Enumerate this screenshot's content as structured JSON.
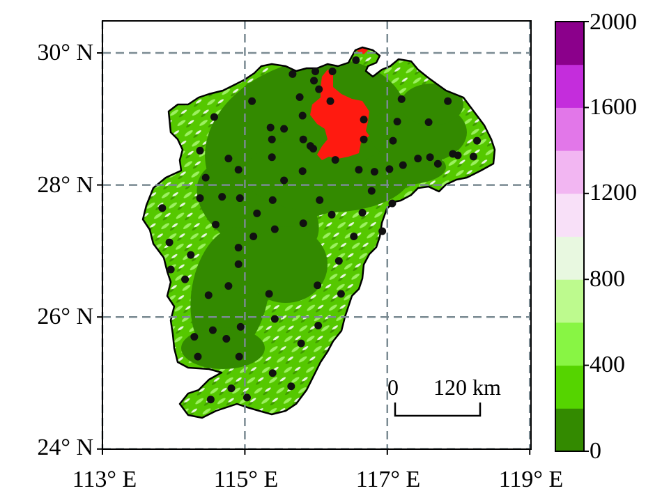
{
  "chart_data": {
    "type": "map",
    "x_ticks": [
      {
        "value": 113,
        "label": "113° E"
      },
      {
        "value": 115,
        "label": "115° E"
      },
      {
        "value": 117,
        "label": "117° E"
      },
      {
        "value": 119,
        "label": "119° E"
      }
    ],
    "y_ticks": [
      {
        "value": 24,
        "label": "24° N"
      },
      {
        "value": 26,
        "label": "26° N"
      },
      {
        "value": 28,
        "label": "28° N"
      },
      {
        "value": 30,
        "label": "30° N"
      }
    ],
    "xlim": [
      113,
      119.05
    ],
    "ylim": [
      24,
      30.48
    ],
    "grid": true,
    "colorbar": {
      "range": [
        0,
        2000
      ],
      "ticks": [
        "0",
        "400",
        "800",
        "1200",
        "1600",
        "2000"
      ],
      "bins": [
        "#338a00",
        "#55d400",
        "#88f544",
        "#bdfa8e",
        "#e8f8e0",
        "#f8e0f8",
        "#f2b6f2",
        "#e277e9",
        "#c42ddc",
        "#8b008b"
      ]
    },
    "scale_bar": {
      "start_label": "0",
      "end_label": "120 km",
      "length_km": 120
    },
    "urban_color": "#ff1a10",
    "station_color": "#111111",
    "stations": [
      [
        115.67,
        29.68
      ],
      [
        115.99,
        29.72
      ],
      [
        116.23,
        29.72
      ],
      [
        116.56,
        29.89
      ],
      [
        115.97,
        29.58
      ],
      [
        116.04,
        29.45
      ],
      [
        115.77,
        29.33
      ],
      [
        116.2,
        29.27
      ],
      [
        115.1,
        29.27
      ],
      [
        117.2,
        29.3
      ],
      [
        117.85,
        29.27
      ],
      [
        114.57,
        29.03
      ],
      [
        115.81,
        29.05
      ],
      [
        116.67,
        28.99
      ],
      [
        117.14,
        28.96
      ],
      [
        117.58,
        28.95
      ],
      [
        115.36,
        28.87
      ],
      [
        115.55,
        28.85
      ],
      [
        115.38,
        28.69
      ],
      [
        115.82,
        28.69
      ],
      [
        116.67,
        28.69
      ],
      [
        117.08,
        28.67
      ],
      [
        118.26,
        28.67
      ],
      [
        115.92,
        28.59
      ],
      [
        115.96,
        28.55
      ],
      [
        114.37,
        28.52
      ],
      [
        114.77,
        28.4
      ],
      [
        115.38,
        28.42
      ],
      [
        116.27,
        28.38
      ],
      [
        117.43,
        28.4
      ],
      [
        117.6,
        28.42
      ],
      [
        117.92,
        28.47
      ],
      [
        117.99,
        28.45
      ],
      [
        118.21,
        28.43
      ],
      [
        117.71,
        28.32
      ],
      [
        117.22,
        28.3
      ],
      [
        117.03,
        28.24
      ],
      [
        116.6,
        28.23
      ],
      [
        116.82,
        28.2
      ],
      [
        115.81,
        28.21
      ],
      [
        114.91,
        28.23
      ],
      [
        114.45,
        28.11
      ],
      [
        115.55,
        28.07
      ],
      [
        116.78,
        27.91
      ],
      [
        114.37,
        27.8
      ],
      [
        114.68,
        27.82
      ],
      [
        114.93,
        27.8
      ],
      [
        115.39,
        27.77
      ],
      [
        116.05,
        27.77
      ],
      [
        117.07,
        27.72
      ],
      [
        113.84,
        27.65
      ],
      [
        115.17,
        27.57
      ],
      [
        116.22,
        27.55
      ],
      [
        116.65,
        27.58
      ],
      [
        114.59,
        27.4
      ],
      [
        115.82,
        27.42
      ],
      [
        115.42,
        27.33
      ],
      [
        115.12,
        27.22
      ],
      [
        116.53,
        27.22
      ],
      [
        116.93,
        27.3
      ],
      [
        113.94,
        27.13
      ],
      [
        114.24,
        26.94
      ],
      [
        114.91,
        27.05
      ],
      [
        116.32,
        26.85
      ],
      [
        113.96,
        26.72
      ],
      [
        114.91,
        26.8
      ],
      [
        114.16,
        26.57
      ],
      [
        114.77,
        26.47
      ],
      [
        116.02,
        26.48
      ],
      [
        115.34,
        26.35
      ],
      [
        114.49,
        26.33
      ],
      [
        116.35,
        26.35
      ],
      [
        115.42,
        25.97
      ],
      [
        116.03,
        25.87
      ],
      [
        114.94,
        25.85
      ],
      [
        114.55,
        25.8
      ],
      [
        114.29,
        25.7
      ],
      [
        114.74,
        25.67
      ],
      [
        115.79,
        25.6
      ],
      [
        114.34,
        25.4
      ],
      [
        114.92,
        25.4
      ],
      [
        115.39,
        25.15
      ],
      [
        114.81,
        24.92
      ],
      [
        115.65,
        24.95
      ],
      [
        115.03,
        24.78
      ],
      [
        114.52,
        24.75
      ]
    ]
  }
}
